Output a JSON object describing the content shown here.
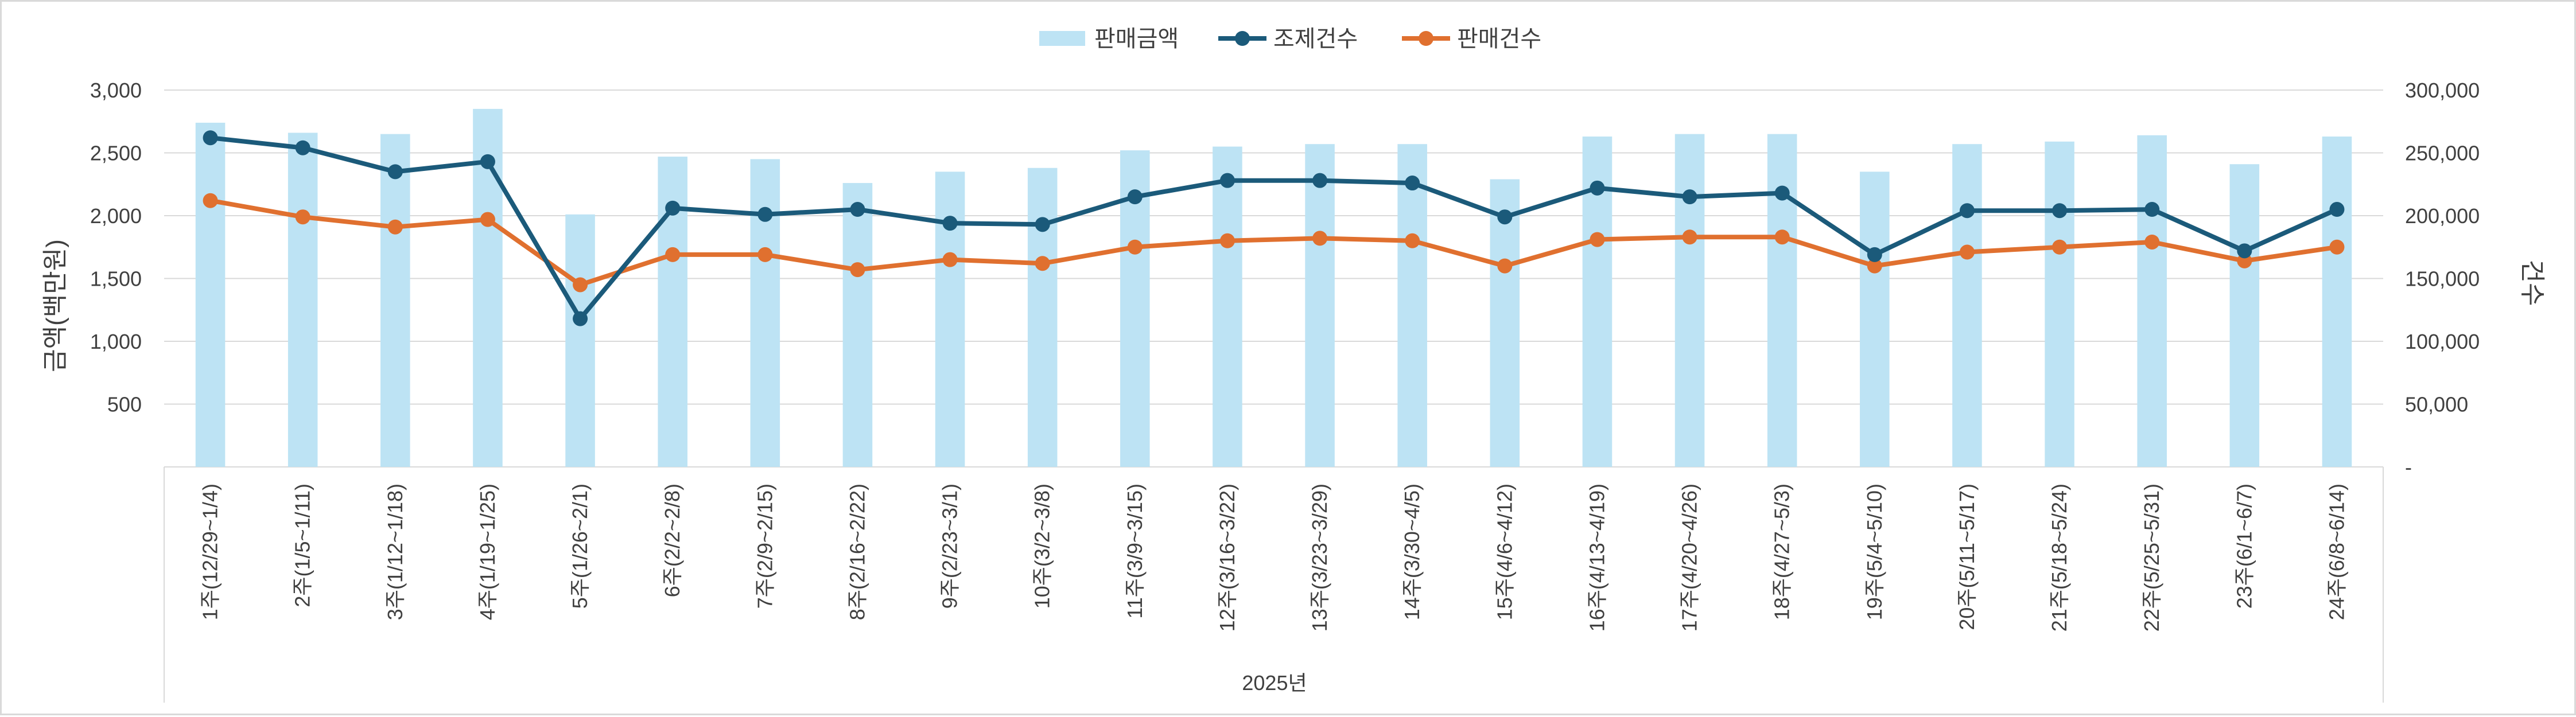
{
  "chart_data": {
    "type": "bar",
    "categories": [
      "1주(12/29~1/4)",
      "2주(1/5~1/11)",
      "3주(1/12~1/18)",
      "4주(1/19~1/25)",
      "5주(1/26~2/1)",
      "6주(2/2~2/8)",
      "7주(2/9~2/15)",
      "8주(2/16~2/22)",
      "9주(2/23~3/1)",
      "10주(3/2~3/8)",
      "11주(3/9~3/15)",
      "12주(3/16~3/22)",
      "13주(3/23~3/29)",
      "14주(3/30~4/5)",
      "15주(4/6~4/12)",
      "16주(4/13~4/19)",
      "17주(4/20~4/26)",
      "18주(4/27~5/3)",
      "19주(5/4~5/10)",
      "20주(5/11~5/17)",
      "21주(5/18~5/24)",
      "22주(5/25~5/31)",
      "23주(6/1~6/7)",
      "24주(6/8~6/14)"
    ],
    "group_label": "2025년",
    "series": [
      {
        "name": "판매금액",
        "type": "bar",
        "axis": "left",
        "color": "#BDE3F4",
        "values": [
          2740,
          2660,
          2650,
          2850,
          2010,
          2470,
          2450,
          2260,
          2350,
          2380,
          2520,
          2550,
          2570,
          2570,
          2290,
          2630,
          2650,
          2650,
          2350,
          2570,
          2590,
          2640,
          2410,
          2630
        ]
      },
      {
        "name": "조제건수",
        "type": "line",
        "axis": "right",
        "color": "#1B5A7A",
        "values": [
          262000,
          254000,
          235000,
          243000,
          118000,
          206000,
          201000,
          205000,
          194000,
          193000,
          215000,
          228000,
          228000,
          226000,
          199000,
          222000,
          215000,
          218000,
          169000,
          204000,
          204000,
          205000,
          172000,
          205000
        ]
      },
      {
        "name": "판매건수",
        "type": "line",
        "axis": "right",
        "color": "#E0702F",
        "values": [
          212000,
          199000,
          191000,
          197000,
          145000,
          169000,
          169000,
          157000,
          165000,
          162000,
          175000,
          180000,
          182000,
          180000,
          160000,
          181000,
          183000,
          183000,
          160000,
          171000,
          175000,
          179000,
          164000,
          175000
        ]
      }
    ],
    "y_left": {
      "label": "금액(백만원)",
      "ylim": [
        0,
        3000
      ],
      "ticks": [
        500,
        1000,
        1500,
        2000,
        2500,
        3000
      ],
      "tick_labels": [
        "500",
        "1,000",
        "1,500",
        "2,000",
        "2,500",
        "3,000"
      ]
    },
    "y_right": {
      "label": "건수",
      "ylim": [
        0,
        300000
      ],
      "ticks": [
        0,
        50000,
        100000,
        150000,
        200000,
        250000,
        300000
      ],
      "tick_labels": [
        "-",
        "50,000",
        "100,000",
        "150,000",
        "200,000",
        "250,000",
        "300,000"
      ]
    },
    "grid": true,
    "legend_position": "top-center"
  }
}
